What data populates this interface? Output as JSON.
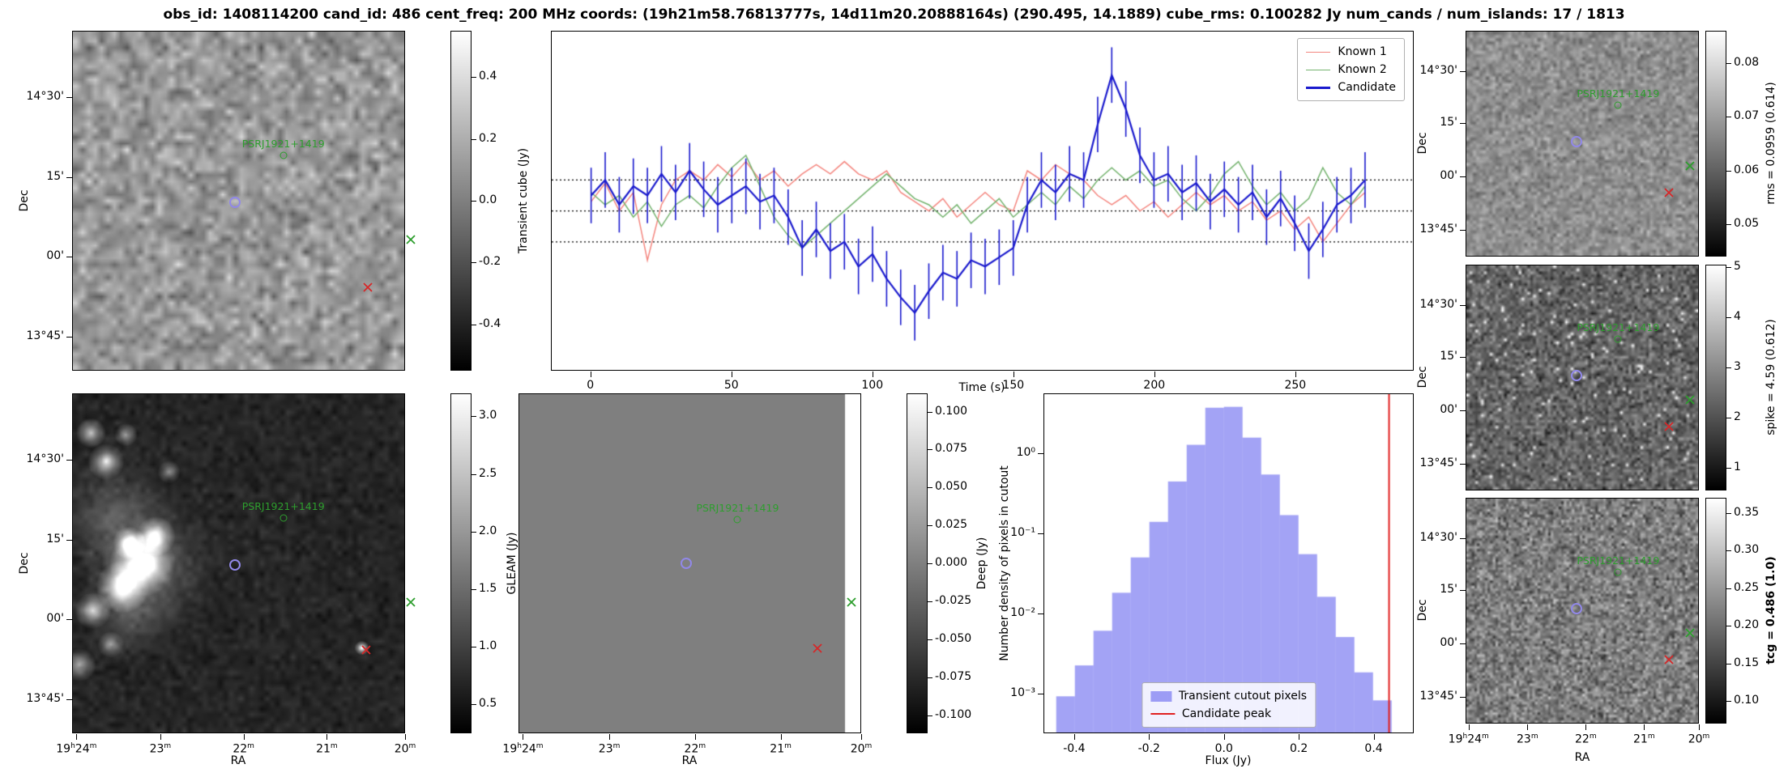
{
  "header": {
    "title": "obs_id: 1408114200 cand_id: 486 cent_freq: 200 MHz coords: (19h21m58.76813777s, 14d11m20.20888164s) (290.495, 14.1889) cube_rms: 0.100282 Jy num_cands / num_islands: 17 / 1813"
  },
  "axis": {
    "dec_label": "Dec",
    "ra_label": "RA",
    "dec_ticks": [
      "14°30'",
      "15'",
      "00'",
      "13°45'"
    ],
    "ra_ticks": [
      "19h24m",
      "23m",
      "22m",
      "21m",
      "20m"
    ]
  },
  "markers": {
    "psr_label": "PSRJ1921+1419",
    "candidate_color": "#9188e8",
    "psr_color": "#2e9e2e",
    "known_x_color": "#2e9e2e",
    "artifact_x_color": "#d62728"
  },
  "cutouts": {
    "transient": {
      "colorbar_ticks": [
        "0.4",
        "0.2",
        "0.0",
        "-0.2",
        "-0.4"
      ],
      "colorbar_label": "",
      "markers": {
        "circle": [
          0.49,
          0.505
        ],
        "psr": [
          0.635,
          0.365
        ],
        "green_x": [
          1.02,
          0.615
        ],
        "red_x": [
          0.89,
          0.755
        ]
      }
    },
    "gleam": {
      "colorbar_ticks": [
        "3.0",
        "2.5",
        "2.0",
        "1.5",
        "1.0",
        "0.5"
      ],
      "colorbar_label": "GLEAM (Jy)",
      "markers": {
        "circle": [
          0.49,
          0.505
        ],
        "psr": [
          0.635,
          0.365
        ],
        "green_x": [
          1.02,
          0.615
        ],
        "red_x": [
          0.885,
          0.755
        ]
      }
    },
    "deep": {
      "colorbar_ticks": [
        "0.100",
        "0.075",
        "0.050",
        "0.025",
        "0.000",
        "-0.025",
        "-0.050",
        "-0.075",
        "-0.100"
      ],
      "colorbar_label": "Deep (Jy)",
      "markers": {
        "circle": [
          0.49,
          0.5
        ],
        "psr": [
          0.64,
          0.37
        ],
        "green_x": [
          0.975,
          0.615
        ],
        "red_x": [
          0.875,
          0.75
        ]
      }
    },
    "rms": {
      "colorbar_ticks": [
        "0.08",
        "0.07",
        "0.06",
        "0.05"
      ],
      "colorbar_label": "rms = 0.0959 (0.614)",
      "markers": {
        "circle": [
          0.475,
          0.49
        ],
        "psr": [
          0.655,
          0.33
        ],
        "green_x": [
          0.965,
          0.6
        ],
        "red_x": [
          0.875,
          0.72
        ]
      }
    },
    "spike": {
      "colorbar_ticks": [
        "5",
        "4",
        "3",
        "2",
        "1"
      ],
      "colorbar_label": "spike = 4.59 (0.612)",
      "markers": {
        "circle": [
          0.475,
          0.49
        ],
        "psr": [
          0.655,
          0.33
        ],
        "green_x": [
          0.965,
          0.6
        ],
        "red_x": [
          0.875,
          0.72
        ]
      }
    },
    "tcg": {
      "colorbar_ticks": [
        "0.35",
        "0.30",
        "0.25",
        "0.20",
        "0.15",
        "0.10"
      ],
      "colorbar_label": "tcg = 0.486 (1.0)",
      "label_bold": true,
      "markers": {
        "circle": [
          0.475,
          0.49
        ],
        "psr": [
          0.655,
          0.33
        ],
        "green_x": [
          0.965,
          0.6
        ],
        "red_x": [
          0.875,
          0.72
        ]
      }
    }
  },
  "chart_data": [
    {
      "id": "light_curve",
      "type": "line",
      "title": "",
      "xlabel": "Time (s)",
      "ylabel": "Transient cube (Jy)",
      "xlim": [
        -14,
        292
      ],
      "ylim": [
        -0.515,
        0.581
      ],
      "x_ticks": [
        0,
        50,
        100,
        150,
        200,
        250
      ],
      "hlines": [
        0.100282,
        0.0,
        -0.100282
      ],
      "hline_style": "dotted",
      "legend_position": "upper right",
      "x": [
        0,
        5,
        10,
        15,
        20,
        25,
        30,
        35,
        40,
        45,
        50,
        55,
        60,
        65,
        70,
        75,
        80,
        85,
        90,
        95,
        100,
        105,
        110,
        115,
        120,
        125,
        130,
        135,
        140,
        145,
        150,
        155,
        160,
        165,
        170,
        175,
        180,
        185,
        190,
        195,
        200,
        205,
        210,
        215,
        220,
        225,
        230,
        235,
        240,
        245,
        250,
        255,
        260,
        265,
        270,
        275
      ],
      "series": [
        {
          "name": "Known 1",
          "color": "#f4867f",
          "values": [
            0.03,
            0.09,
            0.0,
            0.06,
            -0.16,
            0.02,
            0.1,
            0.13,
            0.1,
            0.15,
            0.11,
            0.16,
            0.1,
            0.13,
            0.08,
            0.12,
            0.15,
            0.12,
            0.16,
            0.12,
            0.1,
            0.13,
            0.06,
            0.03,
            0.0,
            0.04,
            -0.02,
            0.02,
            0.06,
            0.02,
            0.0,
            0.13,
            0.1,
            0.15,
            0.12,
            0.1,
            0.05,
            0.02,
            0.05,
            0.0,
            0.03,
            -0.02,
            0.02,
            0.06,
            0.02,
            0.05,
            0.0,
            0.03,
            -0.03,
            0.0,
            -0.06,
            -0.02,
            -0.1,
            -0.04,
            0.02,
            0.06
          ]
        },
        {
          "name": "Known 2",
          "color": "#74b36e",
          "values": [
            0.06,
            0.02,
            0.05,
            -0.02,
            0.03,
            -0.05,
            0.02,
            0.05,
            0.01,
            0.08,
            0.14,
            0.18,
            0.08,
            -0.02,
            -0.08,
            -0.12,
            -0.08,
            -0.04,
            0.0,
            0.04,
            0.08,
            0.12,
            0.08,
            0.04,
            0.02,
            -0.02,
            0.02,
            -0.04,
            0.0,
            0.04,
            -0.02,
            0.02,
            0.06,
            0.02,
            0.08,
            0.04,
            0.1,
            0.14,
            0.1,
            0.13,
            0.08,
            0.1,
            0.04,
            0.0,
            0.05,
            0.12,
            0.16,
            0.08,
            0.02,
            0.06,
            0.0,
            0.04,
            0.14,
            0.06,
            0.02,
            0.08
          ]
        },
        {
          "name": "Candidate",
          "color": "#1a1acd",
          "errorbar": 0.09,
          "values": [
            0.05,
            0.1,
            0.02,
            0.08,
            0.05,
            0.12,
            0.06,
            0.13,
            0.07,
            0.02,
            0.05,
            0.08,
            0.03,
            0.05,
            -0.02,
            -0.12,
            -0.06,
            -0.13,
            -0.1,
            -0.18,
            -0.14,
            -0.22,
            -0.28,
            -0.33,
            -0.26,
            -0.2,
            -0.22,
            -0.16,
            -0.18,
            -0.15,
            -0.12,
            0.02,
            0.1,
            0.06,
            0.12,
            0.1,
            0.28,
            0.44,
            0.33,
            0.18,
            0.1,
            0.12,
            0.06,
            0.09,
            0.03,
            0.07,
            0.02,
            0.06,
            -0.02,
            0.04,
            -0.04,
            -0.13,
            -0.06,
            0.02,
            0.05,
            0.1
          ]
        }
      ]
    },
    {
      "id": "pixel_histogram",
      "type": "bar",
      "xlabel": "Flux (Jy)",
      "ylabel": "Number density of pixels in cutout",
      "yscale": "log",
      "xlim": [
        -0.482,
        0.507
      ],
      "ylog_range": [
        -3.5,
        0.75
      ],
      "x_tick_labels": [
        "-0.4",
        "-0.2",
        "0.0",
        "0.2",
        "0.4"
      ],
      "y_tick_labels": [
        "10⁰",
        "10⁻¹",
        "10⁻²",
        "10⁻³"
      ],
      "y_tick_exps": [
        0,
        -1,
        -2,
        -3
      ],
      "bin_width": 0.05,
      "bin_centers": [
        -0.425,
        -0.375,
        -0.325,
        -0.275,
        -0.225,
        -0.175,
        -0.125,
        -0.075,
        -0.025,
        0.025,
        0.075,
        0.125,
        0.175,
        0.225,
        0.275,
        0.325,
        0.375,
        0.425
      ],
      "densities": [
        0.0009,
        0.0022,
        0.006,
        0.018,
        0.05,
        0.14,
        0.45,
        1.3,
        3.8,
        3.9,
        1.6,
        0.55,
        0.17,
        0.055,
        0.016,
        0.005,
        0.0018,
        0.0008
      ],
      "bar_color": "rgba(72,72,235,0.5)",
      "candidate_peak": 0.443,
      "peak_color": "#e02020",
      "legend": [
        {
          "label": "Transient cutout pixels",
          "type": "patch"
        },
        {
          "label": "Candidate peak",
          "type": "line"
        }
      ]
    }
  ]
}
